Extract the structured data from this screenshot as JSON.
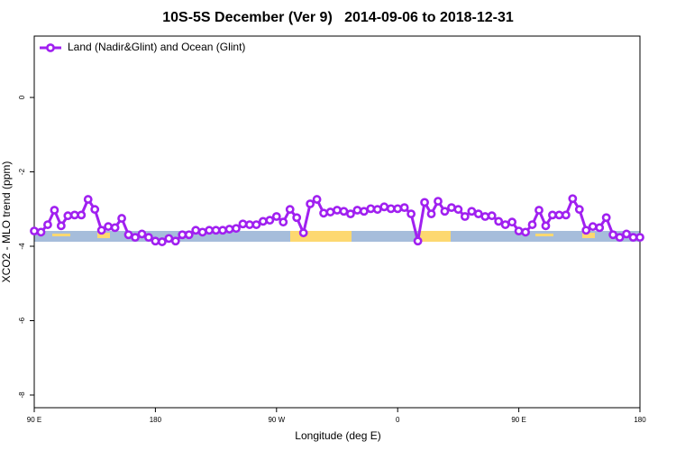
{
  "chart_data": {
    "type": "line",
    "title": "10S-5S December (Ver 9)   2014-09-06 to 2018-12-31",
    "xlabel": "Longitude (deg E)",
    "ylabel": "XCO2 - MLO trend (ppm)",
    "x": [
      90,
      95,
      100,
      105,
      110,
      115,
      120,
      125,
      130,
      135,
      140,
      145,
      150,
      155,
      160,
      165,
      170,
      175,
      180,
      185,
      190,
      195,
      200,
      205,
      210,
      215,
      220,
      225,
      230,
      235,
      240,
      245,
      250,
      255,
      260,
      265,
      270,
      275,
      280,
      285,
      290,
      295,
      300,
      305,
      310,
      315,
      320,
      325,
      330,
      335,
      340,
      345,
      350,
      355,
      360,
      365,
      370,
      375,
      380,
      385,
      390,
      395,
      400,
      405,
      410,
      415,
      420,
      425,
      430,
      435,
      440,
      445,
      450,
      455,
      460,
      465,
      470,
      475,
      480,
      485,
      490,
      495,
      500,
      505,
      510,
      515,
      520,
      525,
      530,
      535,
      540
    ],
    "series": [
      {
        "name": "Land (Nadir&Glint) and Ocean (Glint)",
        "color": "#a020f0",
        "values": [
          -3.59,
          -3.62,
          -3.42,
          -3.03,
          -3.45,
          -3.18,
          -3.16,
          -3.16,
          -2.74,
          -3.01,
          -3.57,
          -3.47,
          -3.5,
          -3.25,
          -3.69,
          -3.76,
          -3.67,
          -3.76,
          -3.86,
          -3.88,
          -3.79,
          -3.86,
          -3.69,
          -3.69,
          -3.57,
          -3.62,
          -3.57,
          -3.57,
          -3.57,
          -3.54,
          -3.52,
          -3.4,
          -3.42,
          -3.42,
          -3.33,
          -3.3,
          -3.2,
          -3.35,
          -3.01,
          -3.23,
          -3.64,
          -2.86,
          -2.74,
          -3.11,
          -3.08,
          -3.03,
          -3.06,
          -3.13,
          -3.03,
          -3.06,
          -2.99,
          -3.01,
          -2.94,
          -2.99,
          -2.99,
          -2.96,
          -3.13,
          -3.86,
          -2.82,
          -3.13,
          -2.79,
          -3.06,
          -2.96,
          -3.01,
          -3.2,
          -3.06,
          -3.13,
          -3.2,
          -3.18,
          -3.33,
          -3.42,
          -3.35,
          -3.59,
          -3.62,
          -3.42,
          -3.03,
          -3.45,
          -3.16,
          -3.16,
          -3.16,
          -2.72,
          -3.01,
          -3.57,
          -3.47,
          -3.5,
          -3.23,
          -3.69,
          -3.76,
          -3.67,
          -3.76,
          -3.76
        ]
      }
    ],
    "xlim": [
      90,
      540
    ],
    "xticks": [
      {
        "value": 90,
        "label": "90 E"
      },
      {
        "value": 180,
        "label": "180"
      },
      {
        "value": 270,
        "label": "90 W"
      },
      {
        "value": 360,
        "label": "0"
      },
      {
        "value": 450,
        "label": "90 E"
      },
      {
        "value": 540,
        "label": "180"
      }
    ],
    "ylim": [
      -8.34,
      1.65
    ],
    "yticks": [
      0,
      -2,
      -4,
      -6,
      -8
    ],
    "legend": "top-left"
  }
}
